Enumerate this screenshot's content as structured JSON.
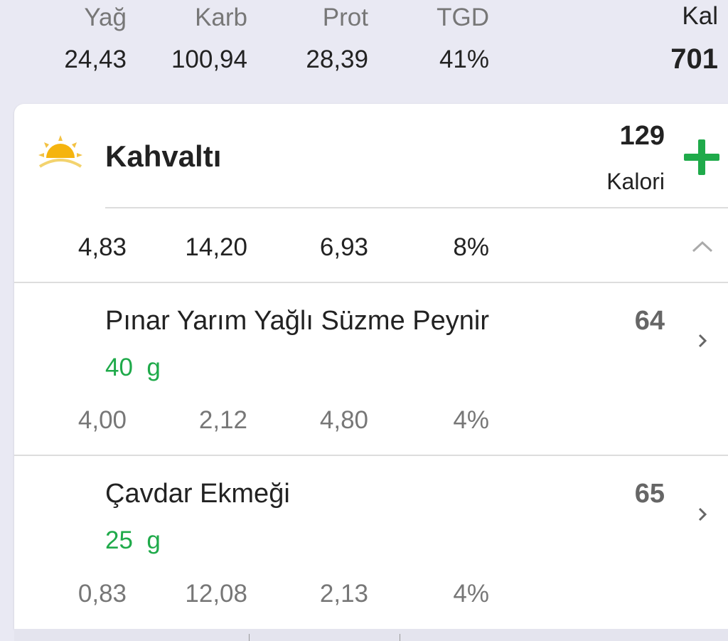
{
  "summary": {
    "labels": [
      "Yağ",
      "Karb",
      "Prot",
      "TGD"
    ],
    "values": [
      "24,43",
      "100,94",
      "28,39",
      "41%"
    ],
    "kcal_label": "Kal",
    "kcal_value": "701"
  },
  "meal": {
    "title": "Kahvaltı",
    "icon": "sunrise-icon",
    "calories": "129",
    "calories_label": "Kalori",
    "add_icon": "plus-icon",
    "macros": [
      "4,83",
      "14,20",
      "6,93",
      "8%"
    ],
    "collapse_icon": "chevron-up-icon",
    "items": [
      {
        "name": "Pınar Yarım Yağlı Süzme Peynir",
        "amount": "40  g",
        "calories": "64",
        "macros": [
          "4,00",
          "2,12",
          "4,80",
          "4%"
        ]
      },
      {
        "name": "Çavdar Ekmeği",
        "amount": "25  g",
        "calories": "65",
        "macros": [
          "0,83",
          "12,08",
          "2,13",
          "4%"
        ]
      }
    ]
  },
  "colors": {
    "accent_green": "#1faa4a",
    "sun": "#f5b40f",
    "background": "#e9e9f3"
  }
}
